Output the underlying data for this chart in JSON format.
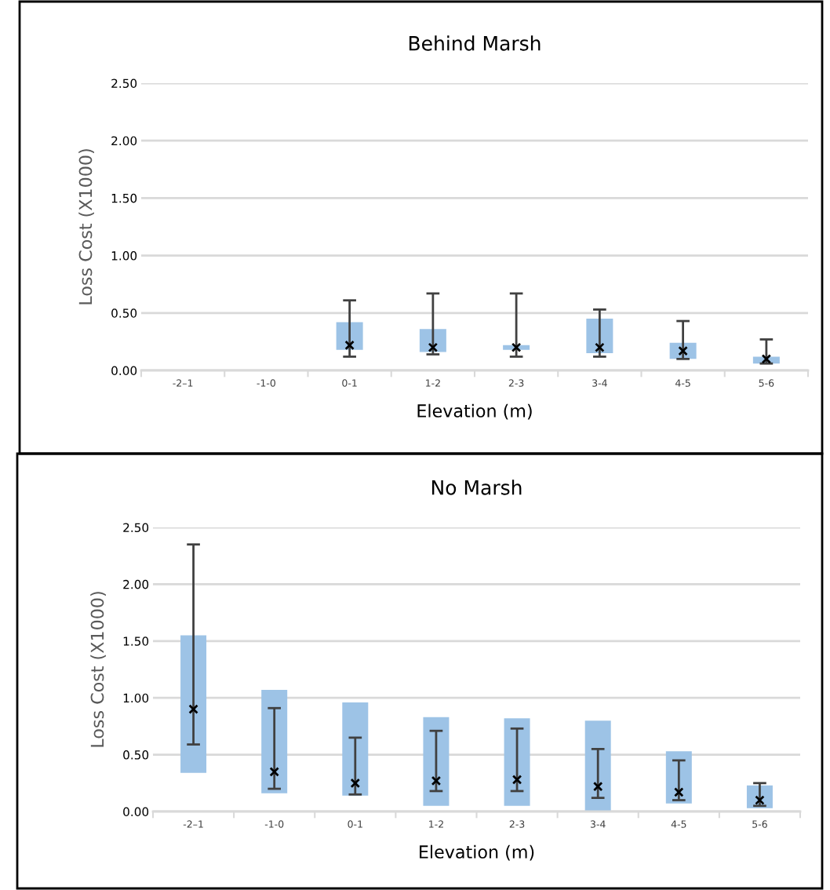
{
  "chart_data": [
    {
      "type": "bar",
      "title": "Behind Marsh",
      "xlabel": "Elevation (m)",
      "ylabel": "Loss Cost (X1000)",
      "categories": [
        "-2–1",
        "-1-0",
        "0-1",
        "1-2",
        "2-3",
        "3-4",
        "4-5",
        "5-6"
      ],
      "ylim": [
        0,
        2.5
      ],
      "yticks": [
        {
          "value": 0,
          "label": "0.00"
        },
        {
          "value": 0.5,
          "label": "0.50"
        },
        {
          "value": 1,
          "label": "1.00"
        },
        {
          "value": 1.5,
          "label": "1.50"
        },
        {
          "value": 2,
          "label": "2.00"
        },
        {
          "value": 2.5,
          "label": "2.50"
        }
      ],
      "grid": "y",
      "series": [
        {
          "color": "#9dc3e6",
          "values": [
            null,
            null,
            0.24,
            0.2,
            0.04,
            0.3,
            0.14,
            0.06
          ],
          "base": [
            null,
            null,
            0.18,
            0.16,
            0.18,
            0.15,
            0.1,
            0.06
          ]
        },
        {
          "type": "scatter",
          "color": "#000000",
          "marker": "cross",
          "values": [
            null,
            null,
            0.22,
            0.2,
            0.2,
            0.2,
            0.17,
            0.1
          ],
          "errors": [
            null,
            null,
            [
              0.12,
              0.61
            ],
            [
              0.14,
              0.67
            ],
            [
              0.12,
              0.67
            ],
            [
              0.12,
              0.53
            ],
            [
              0.1,
              0.43
            ],
            [
              0.06,
              0.27
            ]
          ]
        }
      ]
    },
    {
      "type": "bar",
      "title": "No Marsh",
      "xlabel": "Elevation (m)",
      "ylabel": "Loss Cost (X1000)",
      "categories": [
        "-2–1",
        "-1-0",
        "0-1",
        "1-2",
        "2-3",
        "3-4",
        "4-5",
        "5-6"
      ],
      "ylim": [
        0,
        2.5
      ],
      "yticks": [
        {
          "value": 0,
          "label": "0.00"
        },
        {
          "value": 0.5,
          "label": "0.50"
        },
        {
          "value": 1,
          "label": "1.00"
        },
        {
          "value": 1.5,
          "label": "1.50"
        },
        {
          "value": 2,
          "label": "2.00"
        },
        {
          "value": 2.5,
          "label": "2.50"
        }
      ],
      "grid": "y",
      "series": [
        {
          "color": "#9dc3e6",
          "values": [
            1.21,
            0.91,
            0.82,
            0.78,
            0.77,
            0.8,
            0.46,
            0.2
          ],
          "base": [
            0.34,
            0.16,
            0.14,
            0.05,
            0.05,
            0.0,
            0.07,
            0.03
          ]
        },
        {
          "type": "scatter",
          "color": "#000000",
          "marker": "cross",
          "values": [
            0.9,
            0.35,
            0.25,
            0.27,
            0.28,
            0.22,
            0.17,
            0.1
          ],
          "errors": [
            [
              0.59,
              2.35
            ],
            [
              0.2,
              0.91
            ],
            [
              0.15,
              0.65
            ],
            [
              0.18,
              0.71
            ],
            [
              0.18,
              0.73
            ],
            [
              0.12,
              0.55
            ],
            [
              0.1,
              0.45
            ],
            [
              0.05,
              0.25
            ]
          ]
        }
      ]
    }
  ]
}
